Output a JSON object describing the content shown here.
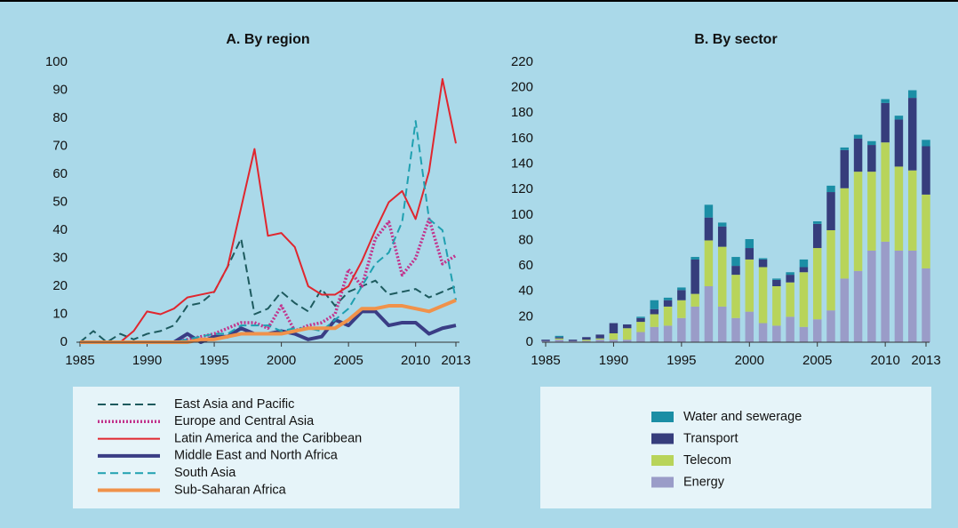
{
  "chart_data": [
    {
      "type": "line",
      "title": "A. By region",
      "x": [
        1985,
        1986,
        1987,
        1988,
        1989,
        1990,
        1991,
        1992,
        1993,
        1994,
        1995,
        1996,
        1997,
        1998,
        1999,
        2000,
        2001,
        2002,
        2003,
        2004,
        2005,
        2006,
        2007,
        2008,
        2009,
        2010,
        2011,
        2012,
        2013
      ],
      "xlim": [
        1985,
        2013
      ],
      "xticks": [
        1985,
        1990,
        1995,
        2000,
        2005,
        2010,
        2013
      ],
      "ylim": [
        0,
        100
      ],
      "yticks": [
        0,
        10,
        20,
        30,
        40,
        50,
        60,
        70,
        80,
        90,
        100
      ],
      "series": [
        {
          "name": "East Asia and Pacific",
          "color": "#1d5a5e",
          "style": "dashed",
          "values": [
            0,
            4,
            0,
            3,
            1,
            3,
            4,
            6,
            13,
            14,
            18,
            27,
            37,
            10,
            12,
            18,
            14,
            11,
            19,
            13,
            18,
            20,
            22,
            17,
            18,
            19,
            16,
            18,
            20
          ]
        },
        {
          "name": "Europe and Central Asia",
          "color": "#c2338c",
          "style": "dotted",
          "values": [
            0,
            0,
            0,
            0,
            0,
            0,
            0,
            0,
            1,
            2,
            3,
            5,
            7,
            7,
            5,
            13,
            4,
            6,
            7,
            10,
            26,
            20,
            37,
            43,
            24,
            30,
            44,
            28,
            31
          ]
        },
        {
          "name": "Latin America and the Caribbean",
          "color": "#e0262e",
          "style": "solid",
          "values": [
            0,
            0,
            0,
            0,
            4,
            11,
            10,
            12,
            16,
            17,
            18,
            27,
            48,
            69,
            38,
            39,
            34,
            20,
            17,
            17,
            20,
            29,
            40,
            50,
            54,
            44,
            61,
            94,
            71
          ]
        },
        {
          "name": "Middle East and North Africa",
          "color": "#3a3d85",
          "style": "thick",
          "values": [
            0,
            0,
            0,
            0,
            0,
            0,
            0,
            0,
            3,
            0,
            2,
            2,
            5,
            3,
            3,
            4,
            3,
            1,
            2,
            8,
            6,
            11,
            11,
            6,
            7,
            7,
            3,
            5,
            6
          ]
        },
        {
          "name": "South Asia",
          "color": "#1fa0b0",
          "style": "dashed",
          "values": [
            0,
            0,
            0,
            0,
            0,
            0,
            0,
            0,
            1,
            2,
            3,
            3,
            6,
            6,
            6,
            4,
            5,
            5,
            4,
            8,
            12,
            20,
            28,
            32,
            43,
            79,
            44,
            40,
            15
          ]
        },
        {
          "name": "Sub-Saharan Africa",
          "color": "#f0924a",
          "style": "thick",
          "values": [
            0,
            0,
            0,
            0,
            0,
            0,
            0,
            0,
            0,
            1,
            1,
            2,
            3,
            3,
            3,
            3,
            4,
            5,
            5,
            5,
            8,
            12,
            12,
            13,
            13,
            12,
            11,
            13,
            15
          ]
        }
      ]
    },
    {
      "type": "stacked_bar",
      "title": "B. By sector",
      "x": [
        1985,
        1986,
        1987,
        1988,
        1989,
        1990,
        1991,
        1992,
        1993,
        1994,
        1995,
        1996,
        1997,
        1998,
        1999,
        2000,
        2001,
        2002,
        2003,
        2004,
        2005,
        2006,
        2007,
        2008,
        2009,
        2010,
        2011,
        2012,
        2013
      ],
      "xlim": [
        1985,
        2013
      ],
      "xticks": [
        1985,
        1990,
        1995,
        2000,
        2005,
        2010,
        2013
      ],
      "ylim": [
        0,
        220
      ],
      "yticks": [
        0,
        20,
        40,
        60,
        80,
        100,
        120,
        140,
        160,
        180,
        200,
        220
      ],
      "series": [
        {
          "name": "Energy",
          "color": "#9a9cc8",
          "values": [
            1,
            2,
            1,
            1,
            2,
            2,
            2,
            8,
            12,
            13,
            19,
            28,
            44,
            28,
            19,
            24,
            15,
            13,
            20,
            12,
            18,
            25,
            50,
            56,
            72,
            79,
            72,
            72,
            58
          ]
        },
        {
          "name": "Telecom",
          "color": "#b8d45a",
          "values": [
            0,
            1,
            0,
            1,
            1,
            5,
            9,
            8,
            10,
            15,
            14,
            10,
            36,
            47,
            34,
            41,
            44,
            31,
            27,
            43,
            56,
            63,
            71,
            78,
            62,
            78,
            66,
            63,
            58
          ]
        },
        {
          "name": "Transport",
          "color": "#363d7c",
          "values": [
            1,
            1,
            1,
            2,
            3,
            8,
            3,
            3,
            4,
            5,
            8,
            27,
            18,
            16,
            7,
            9,
            6,
            5,
            6,
            4,
            19,
            30,
            30,
            26,
            21,
            31,
            37,
            57,
            38
          ]
        },
        {
          "name": "Water and sewerage",
          "color": "#1b8ea5",
          "values": [
            0,
            1,
            0,
            0,
            0,
            0,
            0,
            1,
            7,
            2,
            2,
            2,
            10,
            3,
            7,
            7,
            1,
            1,
            2,
            6,
            2,
            5,
            2,
            3,
            3,
            3,
            3,
            6,
            5
          ]
        }
      ]
    }
  ]
}
